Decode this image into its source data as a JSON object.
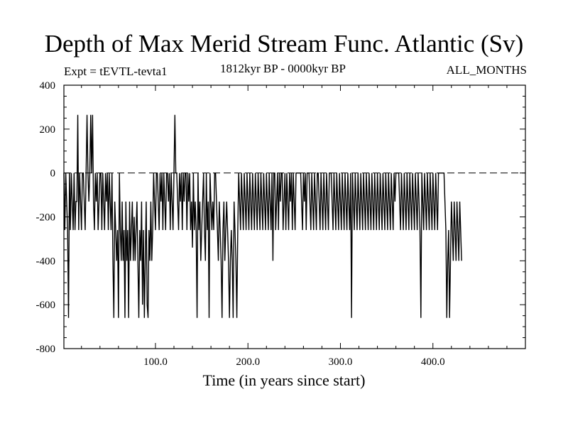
{
  "header": {
    "title": "Depth of Max Merid Stream Func. Atlantic (Sv)",
    "experiment": "Expt = tEVTL-tevta1",
    "period": "1812kyr BP - 0000kyr BP",
    "months": "ALL_MONTHS"
  },
  "chart_data": {
    "type": "line",
    "title": "Depth of Max Merid Stream Func. Atlantic (Sv)",
    "xlabel": "Time (in years since start)",
    "ylabel": "",
    "xlim": [
      1,
      500
    ],
    "ylim": [
      -800,
      400
    ],
    "xticks": [
      100,
      200,
      300,
      400
    ],
    "xtick_labels": [
      "100.0",
      "200.0",
      "300.0",
      "400.0"
    ],
    "yticks": [
      -800,
      -600,
      -400,
      -200,
      0,
      200,
      400
    ],
    "ytick_labels": [
      "-800",
      "-600",
      "-400",
      "-200",
      "0",
      "200",
      "400"
    ],
    "grid": false,
    "reference_line": 0,
    "series": [
      {
        "color": "#000000",
        "x_start": 1,
        "x_step": 1,
        "values": [
          0,
          -260,
          0,
          -130,
          -260,
          -660,
          0,
          -260,
          0,
          -130,
          -260,
          0,
          -260,
          -130,
          -130,
          265,
          -260,
          0,
          -130,
          -260,
          0,
          0,
          -130,
          -260,
          0,
          265,
          0,
          -130,
          0,
          265,
          0,
          265,
          -130,
          -260,
          0,
          -130,
          0,
          -260,
          -130,
          0,
          0,
          -260,
          0,
          -130,
          -260,
          0,
          -130,
          0,
          -260,
          0,
          -130,
          -260,
          0,
          -400,
          -660,
          -130,
          -260,
          -400,
          -260,
          -660,
          0,
          -260,
          -400,
          -130,
          -400,
          -260,
          -660,
          -130,
          -400,
          -260,
          -660,
          -130,
          -400,
          -260,
          -130,
          -400,
          -200,
          -400,
          -260,
          -130,
          -400,
          -660,
          -260,
          -400,
          -130,
          -600,
          -260,
          -660,
          -400,
          -130,
          -600,
          -660,
          -260,
          -400,
          -130,
          -400,
          -260,
          0,
          -130,
          -260,
          0,
          0,
          -130,
          -260,
          0,
          -130,
          0,
          -260,
          0,
          -130,
          -260,
          0,
          0,
          -130,
          0,
          -260,
          0,
          -130,
          -260,
          0,
          265,
          0,
          0,
          -130,
          -260,
          0,
          -130,
          0,
          -260,
          0,
          -130,
          0,
          0,
          -260,
          0,
          -130,
          0,
          -260,
          -130,
          -340,
          0,
          -260,
          -130,
          -260,
          -660,
          0,
          -260,
          -130,
          -400,
          -260,
          -130,
          0,
          -260,
          -400,
          0,
          -260,
          -130,
          -660,
          0,
          -130,
          -260,
          -130,
          -260,
          0,
          0,
          -130,
          -260,
          -400,
          -130,
          -260,
          -400,
          -660,
          -260,
          -130,
          -400,
          -260,
          -130,
          -260,
          -400,
          -660,
          -400,
          -260,
          -400,
          -660,
          -130,
          -260,
          -400,
          -660,
          -260,
          0,
          -130,
          -260,
          0,
          -130,
          -260,
          0,
          -130,
          -260,
          0,
          -130,
          -260,
          0,
          -130,
          -260,
          0,
          -130,
          -260,
          0,
          -130,
          -260,
          0,
          -130,
          -260,
          0,
          -130,
          -260,
          0,
          -130,
          -260,
          0,
          -130,
          -260,
          0,
          -130,
          -260,
          0,
          -400,
          0,
          0,
          -260,
          -130,
          0,
          -260,
          0,
          -130,
          0,
          0,
          -260,
          -130,
          0,
          -260,
          0,
          -130,
          -260,
          0,
          -130,
          0,
          -260,
          0,
          -130,
          -260,
          0,
          0,
          0,
          0,
          0,
          0,
          -130,
          -260,
          0,
          -130,
          0,
          -260,
          0,
          0,
          0,
          -130,
          -260,
          0,
          -130,
          -260,
          0,
          -130,
          -260,
          0,
          0,
          -130,
          -260,
          0,
          -130,
          -260,
          0,
          -130,
          -260,
          0,
          -130,
          -260,
          0,
          0,
          0,
          -130,
          -260,
          0,
          -130,
          -260,
          0,
          -130,
          -260,
          0,
          -130,
          -260,
          0,
          -130,
          -260,
          0,
          -130,
          -260,
          0,
          -130,
          -260,
          0,
          -660,
          0,
          -130,
          -260,
          0,
          -130,
          -260,
          0,
          -130,
          -260,
          0,
          -130,
          -260,
          0,
          -130,
          -260,
          0,
          -130,
          -260,
          0,
          -130,
          -260,
          0,
          -130,
          -260,
          0,
          -130,
          -260,
          0,
          -130,
          -260,
          0,
          -130,
          -260,
          0,
          -130,
          -260,
          0,
          -130,
          -260,
          0,
          -130,
          -260,
          0,
          -130,
          -260,
          0,
          -130,
          0,
          0,
          0,
          0,
          -130,
          -260,
          0,
          -130,
          -260,
          0,
          -130,
          -260,
          0,
          -130,
          -260,
          0,
          -130,
          -260,
          0,
          -130,
          -260,
          0,
          -130,
          -260,
          0,
          -130,
          -260,
          -660,
          0,
          -130,
          -260,
          0,
          -130,
          -260,
          0,
          -130,
          -260,
          0,
          -130,
          -260,
          0,
          -130,
          -260,
          0,
          -130,
          -260,
          0,
          0,
          0,
          0,
          0,
          0,
          0,
          -130,
          -260,
          -660,
          -400,
          -260,
          -660,
          -400,
          -130,
          -260,
          -400,
          -130,
          -260,
          -400,
          -130,
          -260,
          -400,
          -130,
          -260,
          -400
        ]
      }
    ]
  }
}
